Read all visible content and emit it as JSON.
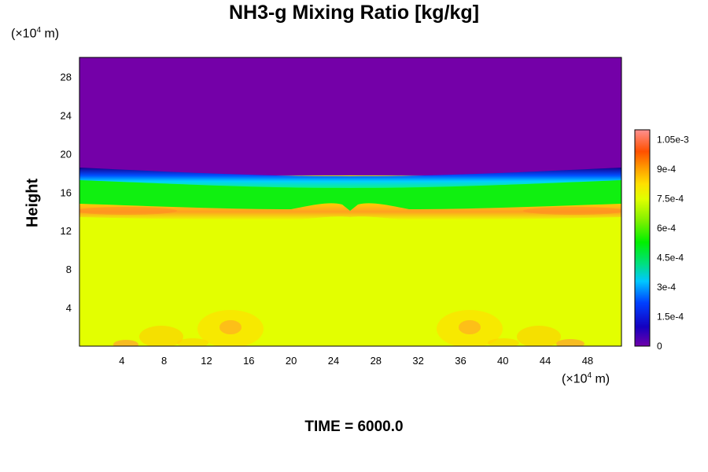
{
  "chart_data": {
    "type": "heatmap",
    "title": "NH3-g Mixing Ratio [kg/kg]",
    "ylabel": "Height",
    "x_unit": {
      "prefix": "(×10",
      "exp": "4",
      "suffix": " m)"
    },
    "y_unit": {
      "prefix": "(×10",
      "exp": "4",
      "suffix": " m)"
    },
    "footer": "TIME = 6000.0",
    "xlim": [
      0,
      51.2
    ],
    "ylim": [
      0,
      30
    ],
    "x_ticks": [
      "4",
      "8",
      "12",
      "16",
      "20",
      "24",
      "28",
      "32",
      "36",
      "40",
      "44",
      "48"
    ],
    "y_ticks": [
      "4",
      "8",
      "12",
      "16",
      "20",
      "24",
      "28"
    ],
    "colorbar": {
      "min": 0,
      "max": 0.0011,
      "tick_values": [
        0,
        0.00015,
        0.0003,
        0.00045,
        0.0006,
        0.00075,
        0.0009,
        0.00105
      ],
      "tick_labels": [
        "0",
        "1.5e-4",
        "3e-4",
        "4.5e-4",
        "6e-4",
        "7.5e-4",
        "9e-4",
        "1.05e-3"
      ]
    },
    "field": {
      "upper_layer": {
        "height_range": [
          18.3,
          30
        ],
        "value": 0
      },
      "transition_layer": {
        "height_range": [
          17.6,
          18.4
        ],
        "value_range": [
          0,
          0.0005
        ]
      },
      "middle_layer": {
        "height_range": [
          14.6,
          17.6
        ],
        "value": 0.00052
      },
      "lower_layer": {
        "height_range": [
          0,
          14.2
        ],
        "value": 0.00076
      },
      "enhanced_band": {
        "height": 14.2,
        "value": 0.00095
      },
      "surface_eddies_x": [
        4,
        14,
        36,
        44
      ]
    }
  }
}
